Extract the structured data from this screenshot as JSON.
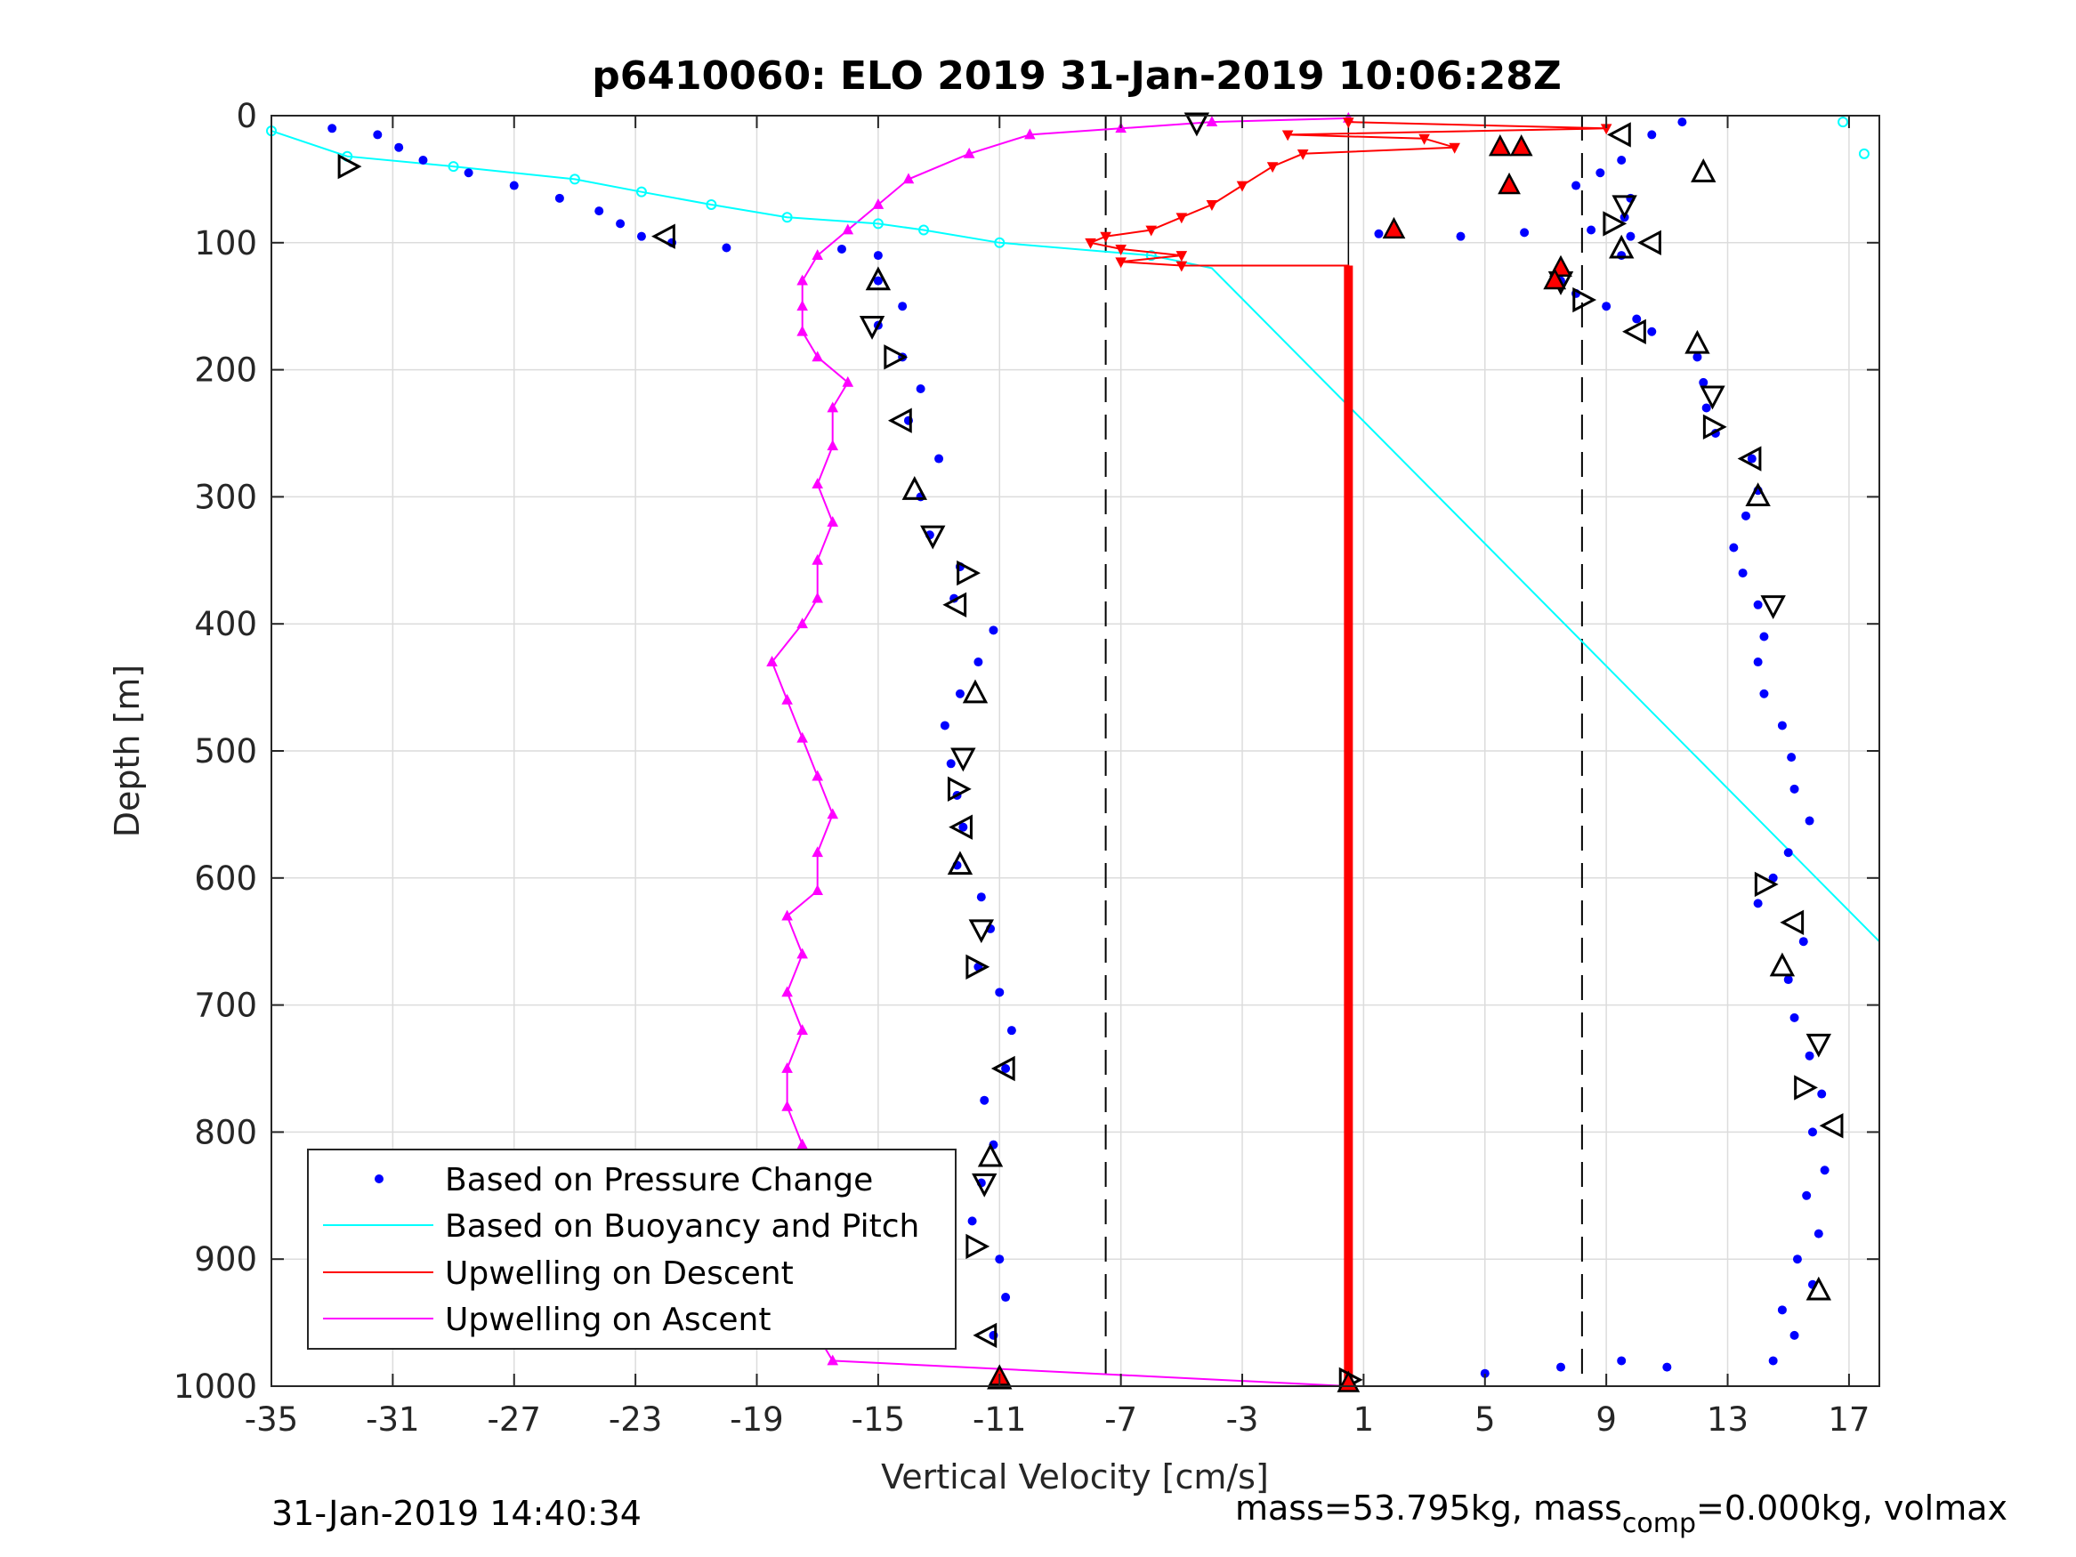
{
  "chart_data": {
    "type": "scatter",
    "title": "p6410060: ELO 2019 31-Jan-2019 10:06:28Z",
    "xlabel": "Vertical Velocity [cm/s]",
    "ylabel": "Depth [m]",
    "xlim": [
      -35,
      18
    ],
    "ylim": [
      1000,
      0
    ],
    "y_reversed": true,
    "xticks": [
      -35,
      -31,
      -27,
      -23,
      -19,
      -15,
      -11,
      -7,
      -3,
      1,
      5,
      9,
      13,
      17
    ],
    "xtick_labels": [
      "-35",
      "-31",
      "-27",
      "-23",
      "-19",
      "-15",
      "-11",
      "-7",
      "-3",
      "1",
      "5",
      "9",
      "13",
      "17"
    ],
    "yticks": [
      0,
      100,
      200,
      300,
      400,
      500,
      600,
      700,
      800,
      900,
      1000
    ],
    "ytick_labels": [
      "0",
      "100",
      "200",
      "300",
      "400",
      "500",
      "600",
      "700",
      "800",
      "900",
      "1000"
    ],
    "grid": true,
    "legend_position": "bottom-left",
    "reference_lines": {
      "dashed_x": [
        -7.5,
        8.2
      ],
      "solid_x": [
        0.5
      ]
    },
    "series": [
      {
        "name": "Based on Pressure Change",
        "color": "#0000ff",
        "marker": "dot",
        "descent": [
          [
            -33,
            10
          ],
          [
            -31.5,
            15
          ],
          [
            -30.8,
            25
          ],
          [
            -30,
            35
          ],
          [
            -28.5,
            45
          ],
          [
            -27,
            55
          ],
          [
            -25.5,
            65
          ],
          [
            -24.2,
            75
          ],
          [
            -23.5,
            85
          ],
          [
            -22.8,
            95
          ],
          [
            -21.8,
            100
          ],
          [
            -20,
            104
          ],
          [
            -16.2,
            105
          ],
          [
            -15,
            110
          ],
          [
            -15,
            130
          ],
          [
            -14.2,
            150
          ],
          [
            -15,
            165
          ],
          [
            -14.2,
            190
          ],
          [
            -13.6,
            215
          ],
          [
            -14,
            240
          ],
          [
            -13,
            270
          ],
          [
            -13.6,
            300
          ],
          [
            -13.3,
            330
          ],
          [
            -12.3,
            355
          ],
          [
            -12.5,
            380
          ],
          [
            -11.2,
            405
          ],
          [
            -11.7,
            430
          ],
          [
            -12.3,
            455
          ],
          [
            -12.8,
            480
          ],
          [
            -12.6,
            510
          ],
          [
            -12.4,
            535
          ],
          [
            -12.2,
            560
          ],
          [
            -12.4,
            590
          ],
          [
            -11.6,
            615
          ],
          [
            -11.3,
            640
          ],
          [
            -11.7,
            670
          ],
          [
            -11.0,
            690
          ],
          [
            -10.6,
            720
          ],
          [
            -10.8,
            750
          ],
          [
            -11.5,
            775
          ],
          [
            -11.2,
            810
          ],
          [
            -11.6,
            840
          ],
          [
            -11.9,
            870
          ],
          [
            -11.0,
            900
          ],
          [
            -10.8,
            930
          ],
          [
            -11.2,
            960
          ],
          [
            -11.1,
            995
          ]
        ],
        "ascent": [
          [
            0.5,
            995
          ],
          [
            5,
            990
          ],
          [
            7.5,
            985
          ],
          [
            9.5,
            980
          ],
          [
            11,
            985
          ],
          [
            14.5,
            980
          ],
          [
            15.2,
            960
          ],
          [
            14.8,
            940
          ],
          [
            15.8,
            920
          ],
          [
            15.3,
            900
          ],
          [
            16,
            880
          ],
          [
            15.6,
            850
          ],
          [
            16.2,
            830
          ],
          [
            15.8,
            800
          ],
          [
            16.1,
            770
          ],
          [
            15.7,
            740
          ],
          [
            15.2,
            710
          ],
          [
            15.0,
            680
          ],
          [
            15.5,
            650
          ],
          [
            14.0,
            620
          ],
          [
            14.5,
            600
          ],
          [
            15.0,
            580
          ],
          [
            15.7,
            555
          ],
          [
            15.2,
            530
          ],
          [
            15.1,
            505
          ],
          [
            14.8,
            480
          ],
          [
            14.2,
            455
          ],
          [
            14.0,
            430
          ],
          [
            14.2,
            410
          ],
          [
            14.0,
            385
          ],
          [
            13.5,
            360
          ],
          [
            13.2,
            340
          ],
          [
            13.6,
            315
          ],
          [
            14.0,
            295
          ],
          [
            13.8,
            270
          ],
          [
            12.6,
            250
          ],
          [
            12.3,
            230
          ],
          [
            12.2,
            210
          ],
          [
            12.0,
            190
          ],
          [
            10.5,
            170
          ],
          [
            10.0,
            160
          ],
          [
            9.0,
            150
          ],
          [
            8.0,
            140
          ],
          [
            7.5,
            130
          ],
          [
            9.5,
            110
          ],
          [
            9.8,
            95
          ],
          [
            9.6,
            80
          ],
          [
            9.8,
            65
          ],
          [
            8.0,
            55
          ],
          [
            8.8,
            45
          ],
          [
            9.5,
            35
          ],
          [
            10.5,
            15
          ],
          [
            11.5,
            5
          ]
        ],
        "near_surface_horizontal": [
          [
            1.5,
            93
          ],
          [
            4.2,
            95
          ],
          [
            6.3,
            92
          ],
          [
            8.5,
            90
          ]
        ]
      },
      {
        "name": "Based on Buoyancy and Pitch",
        "color": "#00ffff",
        "marker": "circle",
        "line": [
          [
            -35,
            12
          ],
          [
            -32.5,
            32
          ],
          [
            -29,
            40
          ],
          [
            -25,
            50
          ],
          [
            -22.8,
            60
          ],
          [
            -20.5,
            70
          ],
          [
            -18,
            80
          ],
          [
            -15,
            85
          ],
          [
            -13.5,
            90
          ],
          [
            -11,
            100
          ],
          [
            -6,
            110
          ],
          [
            -4,
            120
          ],
          [
            18,
            650
          ]
        ],
        "surface_points": [
          [
            16.8,
            5
          ],
          [
            17.5,
            30
          ]
        ]
      },
      {
        "name": "Upwelling on Descent",
        "color": "#ff0000",
        "marker": "triangle-down",
        "line": [
          [
            0.5,
            5
          ],
          [
            9,
            10
          ],
          [
            -1.5,
            15
          ],
          [
            3,
            18
          ],
          [
            4,
            25
          ],
          [
            -1,
            30
          ],
          [
            -2,
            40
          ],
          [
            -3,
            55
          ],
          [
            -4,
            70
          ],
          [
            -5,
            80
          ],
          [
            -6,
            90
          ],
          [
            -7.5,
            95
          ],
          [
            -8,
            100
          ],
          [
            -7,
            105
          ],
          [
            -5,
            110
          ],
          [
            -7,
            115
          ],
          [
            -5,
            118
          ],
          [
            0.5,
            118
          ],
          [
            0.5,
            1000
          ]
        ]
      },
      {
        "name": "Upwelling on Ascent",
        "color": "#ff00ff",
        "marker": "triangle-up",
        "line": [
          [
            0.5,
            1000
          ],
          [
            -16.5,
            980
          ],
          [
            -17,
            960
          ],
          [
            -17,
            930
          ],
          [
            -17.5,
            900
          ],
          [
            -18,
            870
          ],
          [
            -18,
            840
          ],
          [
            -17.5,
            810
          ],
          [
            -18,
            780
          ],
          [
            -18,
            750
          ],
          [
            -17.5,
            720
          ],
          [
            -18,
            690
          ],
          [
            -17.5,
            660
          ],
          [
            -18,
            630
          ],
          [
            -17,
            610
          ],
          [
            -17,
            580
          ],
          [
            -16.5,
            550
          ],
          [
            -17,
            520
          ],
          [
            -17.5,
            490
          ],
          [
            -18,
            460
          ],
          [
            -18.5,
            430
          ],
          [
            -17.5,
            400
          ],
          [
            -17,
            380
          ],
          [
            -17,
            350
          ],
          [
            -16.5,
            320
          ],
          [
            -17,
            290
          ],
          [
            -16.5,
            260
          ],
          [
            -16.5,
            230
          ],
          [
            -16,
            210
          ],
          [
            -17,
            190
          ],
          [
            -17.5,
            170
          ],
          [
            -17.5,
            150
          ],
          [
            -17.5,
            130
          ],
          [
            -17,
            110
          ],
          [
            -16,
            90
          ],
          [
            -15,
            70
          ],
          [
            -14,
            50
          ],
          [
            -12,
            30
          ],
          [
            -10,
            15
          ],
          [
            -7,
            10
          ],
          [
            -4,
            5
          ],
          [
            0.5,
            2
          ]
        ]
      },
      {
        "name": "",
        "color": "#000000",
        "marker": "open-triangle",
        "points": [
          [
            -32.5,
            40
          ],
          [
            -22,
            95
          ],
          [
            -15,
            130
          ],
          [
            -15.2,
            165
          ],
          [
            -14.5,
            190
          ],
          [
            -14.2,
            240
          ],
          [
            -13.8,
            295
          ],
          [
            -13.2,
            330
          ],
          [
            -12.1,
            360
          ],
          [
            -12.4,
            385
          ],
          [
            -11.8,
            455
          ],
          [
            -12.2,
            505
          ],
          [
            -12.4,
            530
          ],
          [
            -12.2,
            560
          ],
          [
            -12.3,
            590
          ],
          [
            -11.6,
            640
          ],
          [
            -11.8,
            670
          ],
          [
            -10.8,
            750
          ],
          [
            -11.3,
            820
          ],
          [
            -11.5,
            840
          ],
          [
            -11.8,
            890
          ],
          [
            -11.4,
            960
          ],
          [
            -11.0,
            995
          ],
          [
            -4.5,
            5
          ],
          [
            0.5,
            995
          ],
          [
            9.5,
            15
          ],
          [
            12.2,
            45
          ],
          [
            9.6,
            70
          ],
          [
            9.2,
            85
          ],
          [
            10.5,
            100
          ],
          [
            9.5,
            105
          ],
          [
            7.5,
            130
          ],
          [
            8.2,
            145
          ],
          [
            10,
            170
          ],
          [
            12,
            180
          ],
          [
            12.5,
            220
          ],
          [
            12.5,
            245
          ],
          [
            13.8,
            270
          ],
          [
            14.0,
            300
          ],
          [
            14.5,
            385
          ],
          [
            14.2,
            605
          ],
          [
            15.2,
            635
          ],
          [
            14.8,
            670
          ],
          [
            16.0,
            730
          ],
          [
            15.5,
            765
          ],
          [
            16.5,
            795
          ],
          [
            16.0,
            925
          ]
        ]
      },
      {
        "name": "",
        "color": "#ff0000",
        "marker": "filled-triangle-up",
        "points": [
          [
            5.5,
            25
          ],
          [
            6.2,
            25
          ],
          [
            5.8,
            55
          ],
          [
            2,
            90
          ],
          [
            7.5,
            120
          ],
          [
            7.3,
            130
          ],
          [
            -11,
            993
          ],
          [
            0.5,
            998
          ]
        ]
      }
    ]
  },
  "legend": {
    "items": [
      {
        "label": "Based on Pressure Change",
        "color": "#0000ff",
        "style": "dot"
      },
      {
        "label": "Based on Buoyancy and Pitch",
        "color": "#00ffff",
        "style": "line"
      },
      {
        "label": "Upwelling on Descent",
        "color": "#ff0000",
        "style": "line"
      },
      {
        "label": "Upwelling on Ascent",
        "color": "#ff00ff",
        "style": "line"
      }
    ]
  },
  "footer": {
    "timestamp": "31-Jan-2019 14:40:34",
    "mass_text": "mass=53.795kg, mass",
    "mass_sub": "comp",
    "mass_text2": "=0.000kg, volmax"
  }
}
